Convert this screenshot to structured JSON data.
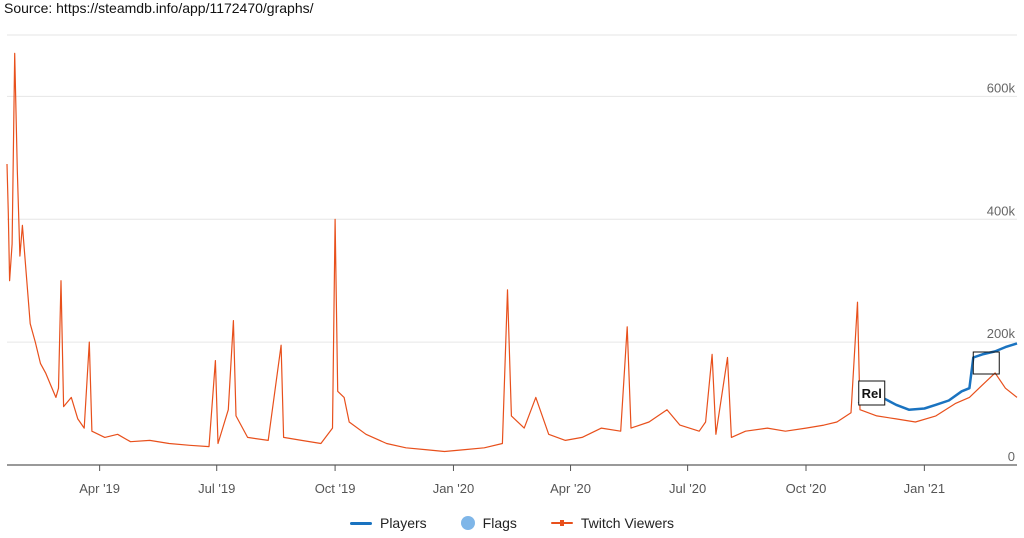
{
  "source_text": "Source: https://steamdb.info/app/1172470/graphs/",
  "chart_data": {
    "type": "line",
    "x_type": "date",
    "x_range": [
      "2019-01-19",
      "2021-03-14"
    ],
    "x_ticks": [
      {
        "date": "2019-04-01",
        "label": "Apr '19"
      },
      {
        "date": "2019-07-01",
        "label": "Jul '19"
      },
      {
        "date": "2019-10-01",
        "label": "Oct '19"
      },
      {
        "date": "2020-01-01",
        "label": "Jan '20"
      },
      {
        "date": "2020-04-01",
        "label": "Apr '20"
      },
      {
        "date": "2020-07-01",
        "label": "Jul '20"
      },
      {
        "date": "2020-10-01",
        "label": "Oct '20"
      },
      {
        "date": "2021-01-01",
        "label": "Jan '21"
      }
    ],
    "y_axis": {
      "ylim": [
        0,
        700000
      ],
      "ticks": [
        {
          "value": 0,
          "label": "0"
        },
        {
          "value": 200000,
          "label": "200k"
        },
        {
          "value": 400000,
          "label": "400k"
        },
        {
          "value": 600000,
          "label": "600k"
        }
      ],
      "position": "right",
      "grid": true
    },
    "legend_position": "bottom",
    "series": [
      {
        "name": "Twitch Viewers",
        "color": "#e8501c",
        "points": [
          [
            "2019-01-19",
            490000
          ],
          [
            "2019-01-20",
            410000
          ],
          [
            "2019-01-21",
            300000
          ],
          [
            "2019-01-23",
            360000
          ],
          [
            "2019-01-25",
            670000
          ],
          [
            "2019-01-27",
            480000
          ],
          [
            "2019-01-29",
            340000
          ],
          [
            "2019-01-31",
            390000
          ],
          [
            "2019-02-03",
            310000
          ],
          [
            "2019-02-06",
            230000
          ],
          [
            "2019-02-10",
            200000
          ],
          [
            "2019-02-14",
            165000
          ],
          [
            "2019-02-18",
            150000
          ],
          [
            "2019-02-22",
            130000
          ],
          [
            "2019-02-26",
            110000
          ],
          [
            "2019-02-28",
            125000
          ],
          [
            "2019-03-02",
            300000
          ],
          [
            "2019-03-04",
            95000
          ],
          [
            "2019-03-10",
            110000
          ],
          [
            "2019-03-15",
            75000
          ],
          [
            "2019-03-20",
            60000
          ],
          [
            "2019-03-24",
            200000
          ],
          [
            "2019-03-26",
            55000
          ],
          [
            "2019-04-05",
            45000
          ],
          [
            "2019-04-15",
            50000
          ],
          [
            "2019-04-25",
            38000
          ],
          [
            "2019-05-10",
            40000
          ],
          [
            "2019-05-25",
            35000
          ],
          [
            "2019-06-10",
            32000
          ],
          [
            "2019-06-25",
            30000
          ],
          [
            "2019-06-30",
            170000
          ],
          [
            "2019-07-02",
            35000
          ],
          [
            "2019-07-10",
            90000
          ],
          [
            "2019-07-14",
            235000
          ],
          [
            "2019-07-16",
            80000
          ],
          [
            "2019-07-25",
            45000
          ],
          [
            "2019-08-10",
            40000
          ],
          [
            "2019-08-20",
            195000
          ],
          [
            "2019-08-22",
            45000
          ],
          [
            "2019-09-05",
            40000
          ],
          [
            "2019-09-20",
            35000
          ],
          [
            "2019-09-29",
            60000
          ],
          [
            "2019-10-01",
            400000
          ],
          [
            "2019-10-03",
            120000
          ],
          [
            "2019-10-08",
            110000
          ],
          [
            "2019-10-12",
            70000
          ],
          [
            "2019-10-25",
            50000
          ],
          [
            "2019-11-10",
            35000
          ],
          [
            "2019-11-25",
            28000
          ],
          [
            "2019-12-10",
            25000
          ],
          [
            "2019-12-25",
            22000
          ],
          [
            "2020-01-10",
            25000
          ],
          [
            "2020-01-25",
            28000
          ],
          [
            "2020-02-08",
            35000
          ],
          [
            "2020-02-12",
            285000
          ],
          [
            "2020-02-15",
            80000
          ],
          [
            "2020-02-25",
            60000
          ],
          [
            "2020-03-05",
            110000
          ],
          [
            "2020-03-15",
            50000
          ],
          [
            "2020-03-28",
            40000
          ],
          [
            "2020-04-10",
            45000
          ],
          [
            "2020-04-25",
            60000
          ],
          [
            "2020-05-10",
            55000
          ],
          [
            "2020-05-15",
            225000
          ],
          [
            "2020-05-18",
            60000
          ],
          [
            "2020-06-01",
            70000
          ],
          [
            "2020-06-15",
            90000
          ],
          [
            "2020-06-25",
            65000
          ],
          [
            "2020-07-10",
            55000
          ],
          [
            "2020-07-15",
            70000
          ],
          [
            "2020-07-20",
            180000
          ],
          [
            "2020-07-23",
            50000
          ],
          [
            "2020-08-01",
            175000
          ],
          [
            "2020-08-04",
            45000
          ],
          [
            "2020-08-15",
            55000
          ],
          [
            "2020-09-01",
            60000
          ],
          [
            "2020-09-15",
            55000
          ],
          [
            "2020-10-01",
            60000
          ],
          [
            "2020-10-15",
            65000
          ],
          [
            "2020-10-25",
            70000
          ],
          [
            "2020-11-05",
            85000
          ],
          [
            "2020-11-10",
            265000
          ],
          [
            "2020-11-12",
            90000
          ],
          [
            "2020-11-25",
            80000
          ],
          [
            "2020-12-10",
            75000
          ],
          [
            "2020-12-25",
            70000
          ],
          [
            "2021-01-10",
            80000
          ],
          [
            "2021-01-25",
            100000
          ],
          [
            "2021-02-05",
            110000
          ],
          [
            "2021-02-15",
            130000
          ],
          [
            "2021-02-25",
            150000
          ],
          [
            "2021-03-05",
            125000
          ],
          [
            "2021-03-14",
            110000
          ]
        ]
      },
      {
        "name": "Players",
        "color": "#1a73c0",
        "points": [
          [
            "2020-11-11",
            100000
          ],
          [
            "2020-11-15",
            110000
          ],
          [
            "2020-11-22",
            102000
          ],
          [
            "2020-12-01",
            108000
          ],
          [
            "2020-12-10",
            98000
          ],
          [
            "2020-12-20",
            90000
          ],
          [
            "2021-01-01",
            92000
          ],
          [
            "2021-01-10",
            98000
          ],
          [
            "2021-01-20",
            105000
          ],
          [
            "2021-01-30",
            120000
          ],
          [
            "2021-02-05",
            125000
          ],
          [
            "2021-02-08",
            175000
          ],
          [
            "2021-02-15",
            180000
          ],
          [
            "2021-02-25",
            185000
          ],
          [
            "2021-03-05",
            192000
          ],
          [
            "2021-03-14",
            198000
          ]
        ]
      },
      {
        "name": "Flags",
        "color": "#7fb6e8",
        "points": []
      }
    ],
    "annotations": [
      {
        "date": "2020-11-11",
        "label": "Rel"
      },
      {
        "date": "2021-02-08",
        "label": ""
      }
    ]
  },
  "legend": {
    "players": "Players",
    "flags": "Flags",
    "twitch": "Twitch Viewers"
  },
  "colors": {
    "players": "#1a73c0",
    "flags": "#7fb6e8",
    "twitch": "#e8501c"
  }
}
